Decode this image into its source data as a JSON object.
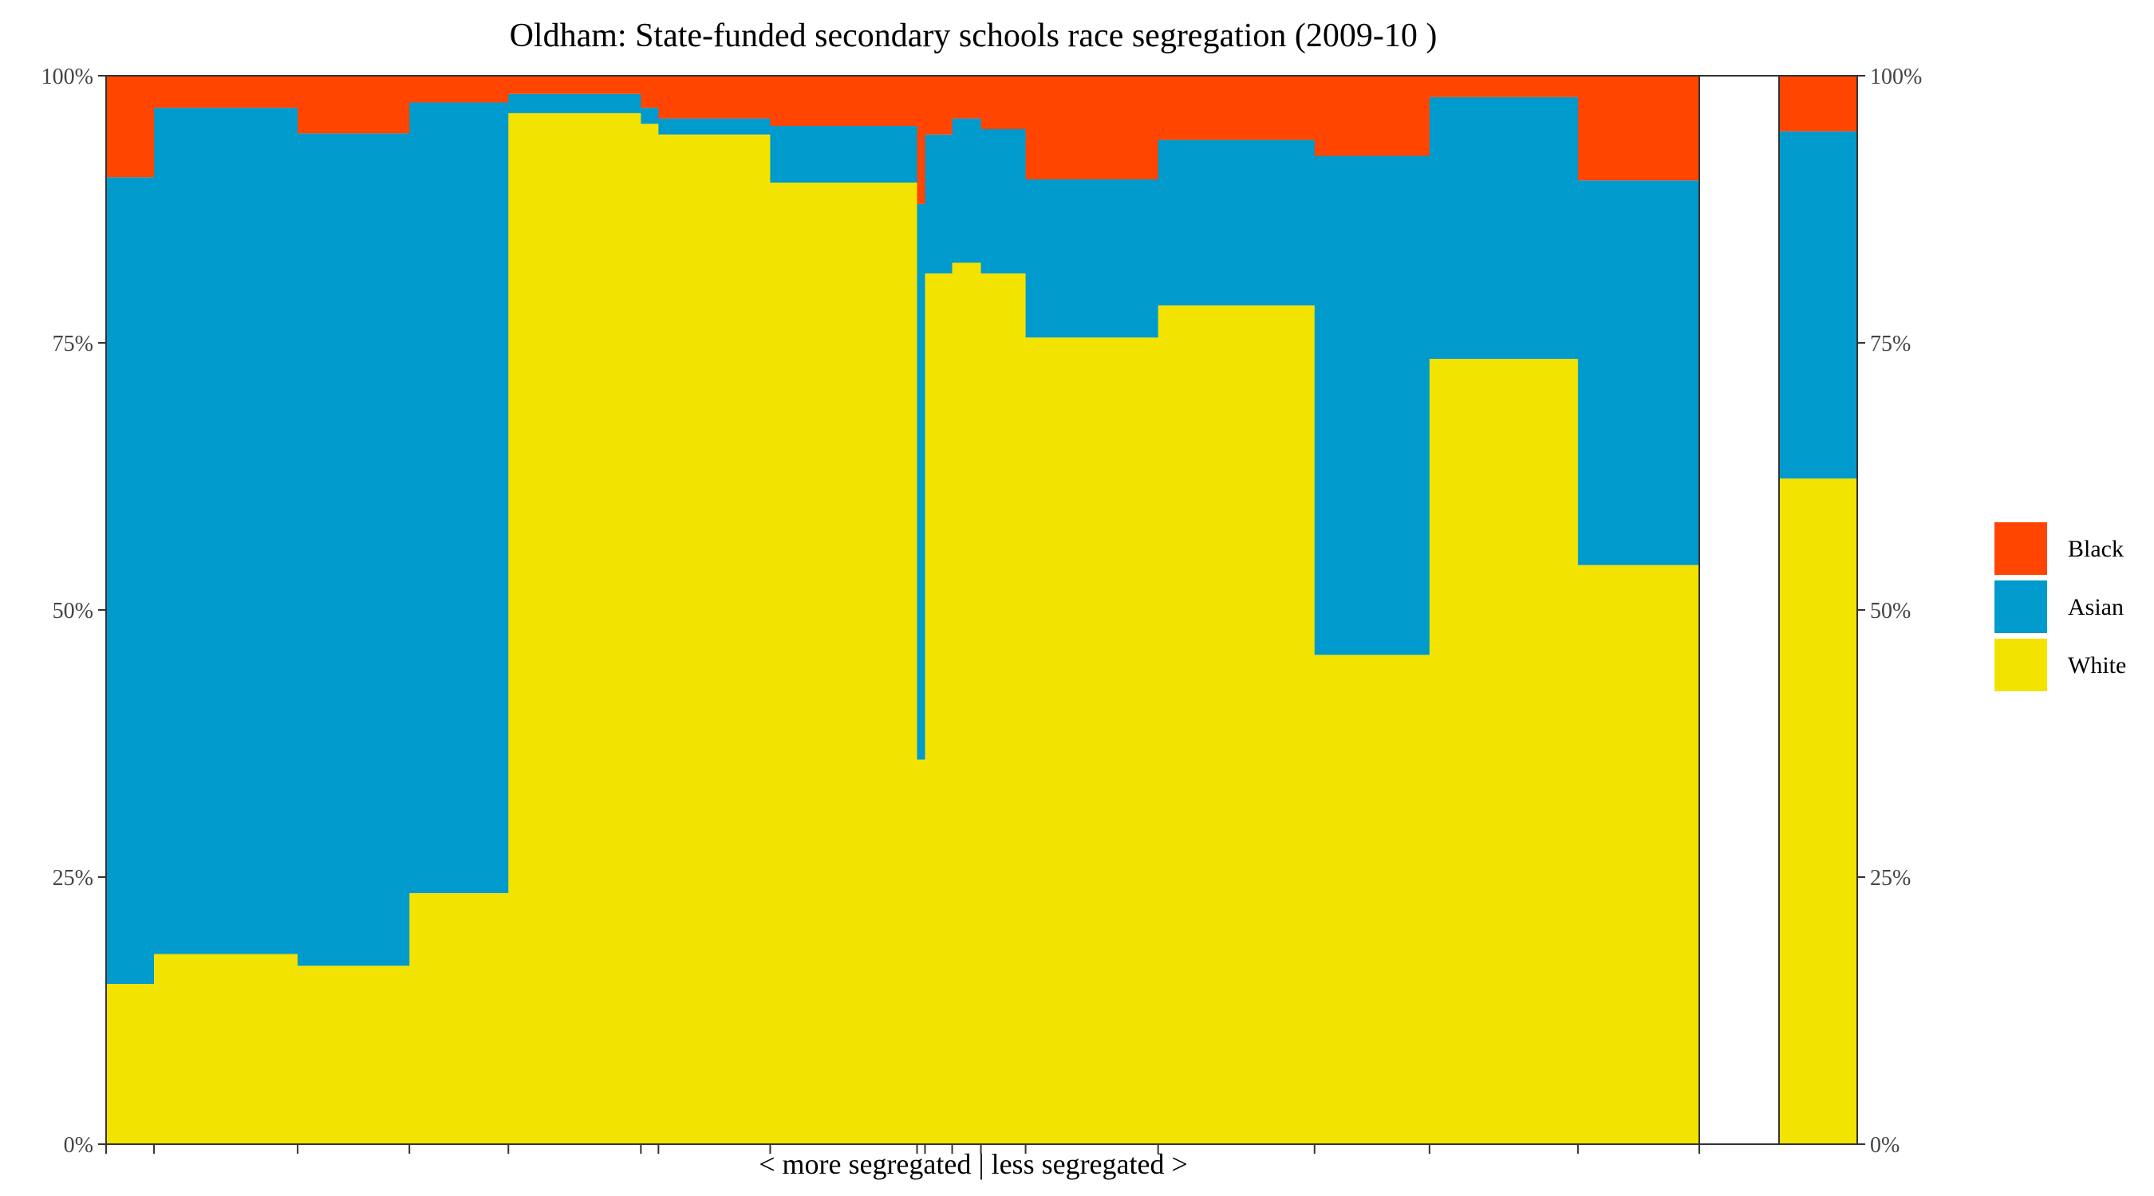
{
  "chart_data": {
    "type": "bar",
    "subtype": "stacked-variable-width",
    "title": "Oldham: State-funded secondary schools race segregation (2009-10 )",
    "xlabel": "< more segregated | less segregated >",
    "ylabel": "",
    "y_tick_labels": [
      "0%",
      "25%",
      "50%",
      "75%",
      "100%"
    ],
    "ylim": [
      0,
      100
    ],
    "colors": {
      "Black": "#FF4500",
      "Asian": "#009ACD",
      "White": "#F2E300"
    },
    "legend": {
      "placement": "right",
      "entries": [
        "Black",
        "Asian",
        "White"
      ]
    },
    "stack_order": [
      "White",
      "Asian",
      "Black"
    ],
    "schools": [
      {
        "share": 3.0,
        "White": 15,
        "Asian": 75.5,
        "Black": 9.5
      },
      {
        "share": 9.0,
        "White": 17.8,
        "Asian": 79.2,
        "Black": 3.0
      },
      {
        "share": 7.0,
        "White": 16.7,
        "Asian": 77.9,
        "Black": 5.4
      },
      {
        "share": 6.2,
        "White": 23.5,
        "Asian": 74.0,
        "Black": 2.5
      },
      {
        "share": 8.3,
        "White": 96.5,
        "Asian": 1.8,
        "Black": 1.7
      },
      {
        "share": 1.1,
        "White": 95.5,
        "Asian": 1.5,
        "Black": 3.0
      },
      {
        "share": 7.0,
        "White": 94.5,
        "Asian": 1.5,
        "Black": 4.0
      },
      {
        "share": 9.2,
        "White": 90.0,
        "Asian": 5.3,
        "Black": 4.7
      },
      {
        "share": 0.5,
        "White": 36.0,
        "Asian": 52.0,
        "Black": 12.0
      },
      {
        "share": 1.7,
        "White": 81.5,
        "Asian": 13.0,
        "Black": 5.5
      },
      {
        "share": 1.8,
        "White": 82.5,
        "Asian": 13.5,
        "Black": 4.0
      },
      {
        "share": 2.8,
        "White": 81.5,
        "Asian": 13.5,
        "Black": 5.0
      },
      {
        "share": 8.3,
        "White": 75.5,
        "Asian": 14.8,
        "Black": 9.7
      },
      {
        "share": 9.8,
        "White": 78.5,
        "Asian": 15.5,
        "Black": 6.0
      },
      {
        "share": 7.2,
        "White": 45.8,
        "Asian": 46.7,
        "Black": 7.5
      },
      {
        "share": 9.3,
        "White": 73.5,
        "Asian": 24.5,
        "Black": 2.0
      },
      {
        "share": 7.6,
        "White": 54.2,
        "Asian": 36.0,
        "Black": 9.8
      }
    ],
    "overall": {
      "White": 62.3,
      "Asian": 32.5,
      "Black": 5.2
    }
  }
}
